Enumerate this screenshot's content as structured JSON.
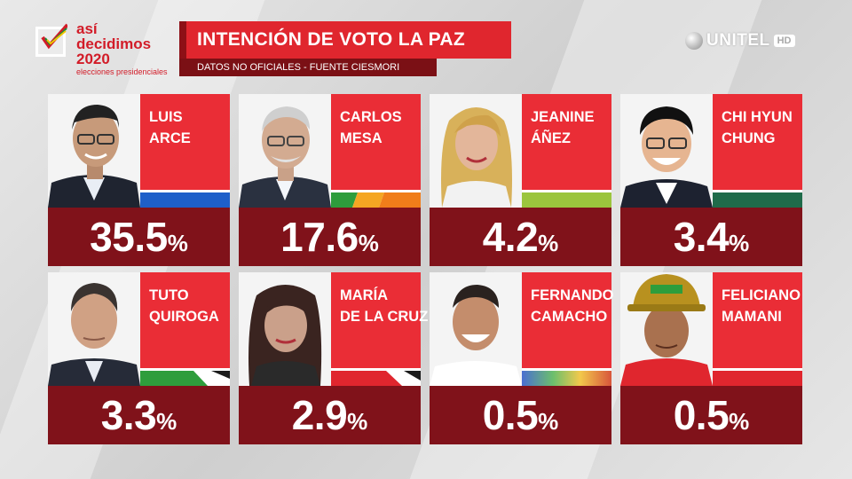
{
  "logo": {
    "line1": "así",
    "line2": "decidimos",
    "line3": "2020",
    "sub": "elecciones presidenciales"
  },
  "header": {
    "title": "INTENCIÓN DE VOTO LA PAZ",
    "subtitle": "DATOS NO OFICIALES - FUENTE CIESMORI"
  },
  "channel": {
    "name": "UNITEL",
    "badge": "HD"
  },
  "candidates": [
    {
      "first": "LUIS",
      "last": "ARCE",
      "value": "35.5",
      "sign": "%"
    },
    {
      "first": "CARLOS",
      "last": "MESA",
      "value": "17.6",
      "sign": "%"
    },
    {
      "first": "JEANINE",
      "last": "ÁÑEZ",
      "value": "4.2",
      "sign": "%"
    },
    {
      "first": "CHI HYUN",
      "last": "CHUNG",
      "value": "3.4",
      "sign": "%"
    },
    {
      "first": "TUTO",
      "last": "QUIROGA",
      "value": "3.3",
      "sign": "%"
    },
    {
      "first": "MARÍA",
      "last": "DE LA CRUZ",
      "value": "2.9",
      "sign": "%"
    },
    {
      "first": "FERNANDO",
      "last": "CAMACHO",
      "value": "0.5",
      "sign": "%"
    },
    {
      "first": "FELICIANO",
      "last": "MAMANI",
      "value": "0.5",
      "sign": "%"
    }
  ],
  "colors": {
    "accent": "#ea2d36",
    "dark": "#80121a",
    "header": "#e0262e"
  }
}
